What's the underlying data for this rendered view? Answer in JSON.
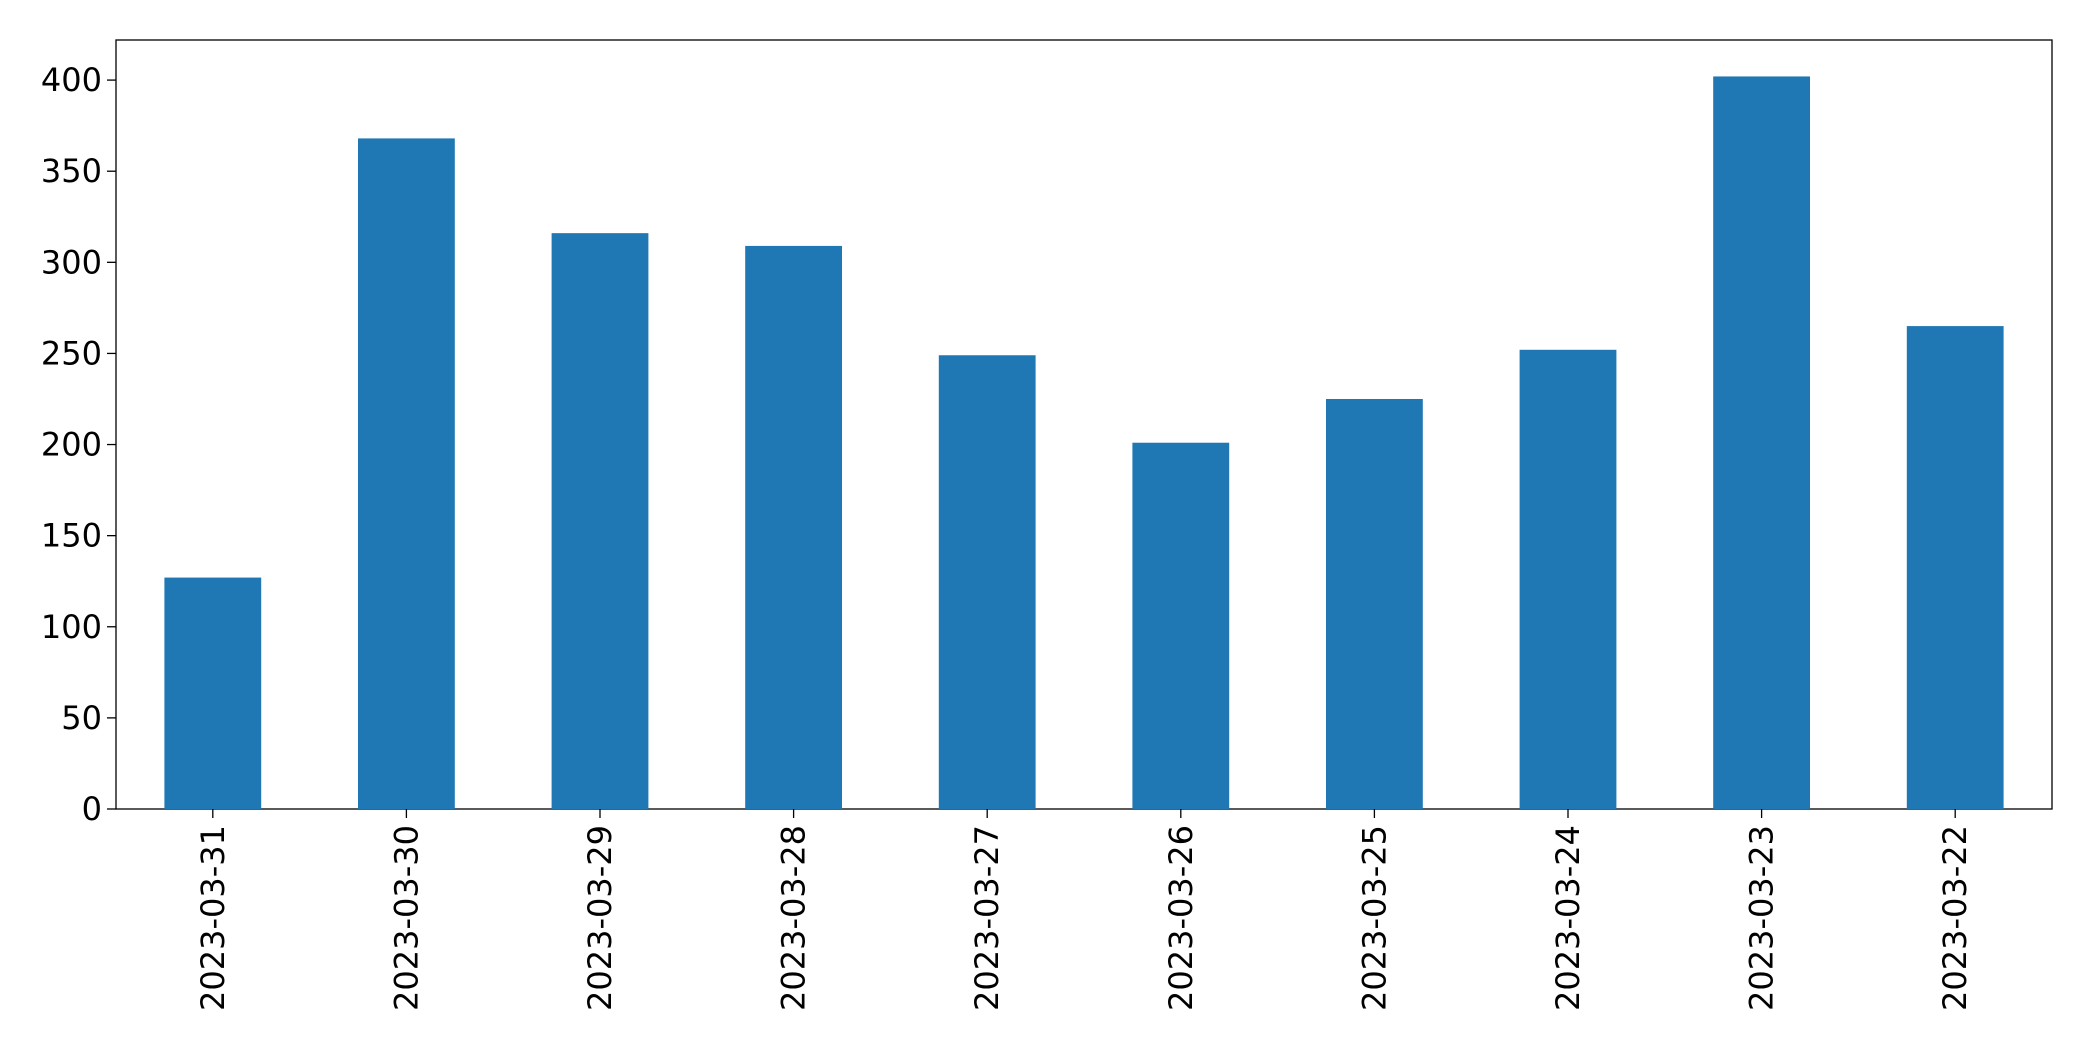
{
  "chart_data": {
    "type": "bar",
    "categories": [
      "2023-03-31",
      "2023-03-30",
      "2023-03-29",
      "2023-03-28",
      "2023-03-27",
      "2023-03-26",
      "2023-03-25",
      "2023-03-24",
      "2023-03-23",
      "2023-03-22"
    ],
    "values": [
      127,
      368,
      316,
      309,
      249,
      201,
      225,
      252,
      402,
      265
    ],
    "color": "#1f77b4",
    "ylim": [
      0,
      422
    ],
    "yticks": [
      0,
      50,
      100,
      150,
      200,
      250,
      300,
      350,
      400
    ],
    "grid": false
  }
}
